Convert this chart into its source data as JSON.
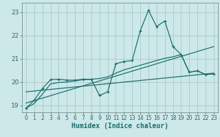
{
  "background_color": "#cce8e8",
  "grid_color": "#aac8c8",
  "line_color": "#1a6e6e",
  "x_label": "Humidex (Indice chaleur)",
  "xlim": [
    -0.5,
    23.5
  ],
  "ylim": [
    18.7,
    23.4
  ],
  "yticks": [
    19,
    20,
    21,
    22,
    23
  ],
  "xticks": [
    0,
    1,
    2,
    3,
    4,
    5,
    6,
    7,
    8,
    9,
    10,
    11,
    12,
    13,
    14,
    15,
    16,
    17,
    18,
    19,
    20,
    21,
    22,
    23
  ],
  "series1_x": [
    0,
    1,
    2,
    3,
    4,
    5,
    6,
    7,
    8,
    9,
    10,
    11,
    12,
    13,
    14,
    15,
    16,
    17,
    18,
    19,
    20,
    21,
    22,
    23
  ],
  "series1_y": [
    18.88,
    19.22,
    19.72,
    20.1,
    20.12,
    20.08,
    20.08,
    20.12,
    20.12,
    19.42,
    19.58,
    20.78,
    20.88,
    20.92,
    22.2,
    23.08,
    22.38,
    22.62,
    21.52,
    21.18,
    20.42,
    20.48,
    20.32,
    20.35
  ],
  "series2_x": [
    0,
    23
  ],
  "series2_y": [
    19.1,
    21.52
  ],
  "series3_x": [
    0,
    23
  ],
  "series3_y": [
    19.58,
    20.38
  ],
  "series4_x": [
    0,
    1,
    2,
    3,
    4,
    5,
    6,
    7,
    8,
    9,
    10,
    11,
    12,
    13,
    14,
    15,
    16,
    17,
    18,
    19,
    20,
    21,
    22,
    23
  ],
  "series4_y": [
    18.88,
    19.08,
    19.48,
    19.92,
    19.98,
    20.0,
    20.05,
    20.1,
    20.12,
    20.15,
    20.22,
    20.38,
    20.52,
    20.62,
    20.72,
    20.82,
    20.92,
    21.02,
    21.08,
    21.18,
    20.42,
    20.48,
    20.32,
    20.35
  ]
}
